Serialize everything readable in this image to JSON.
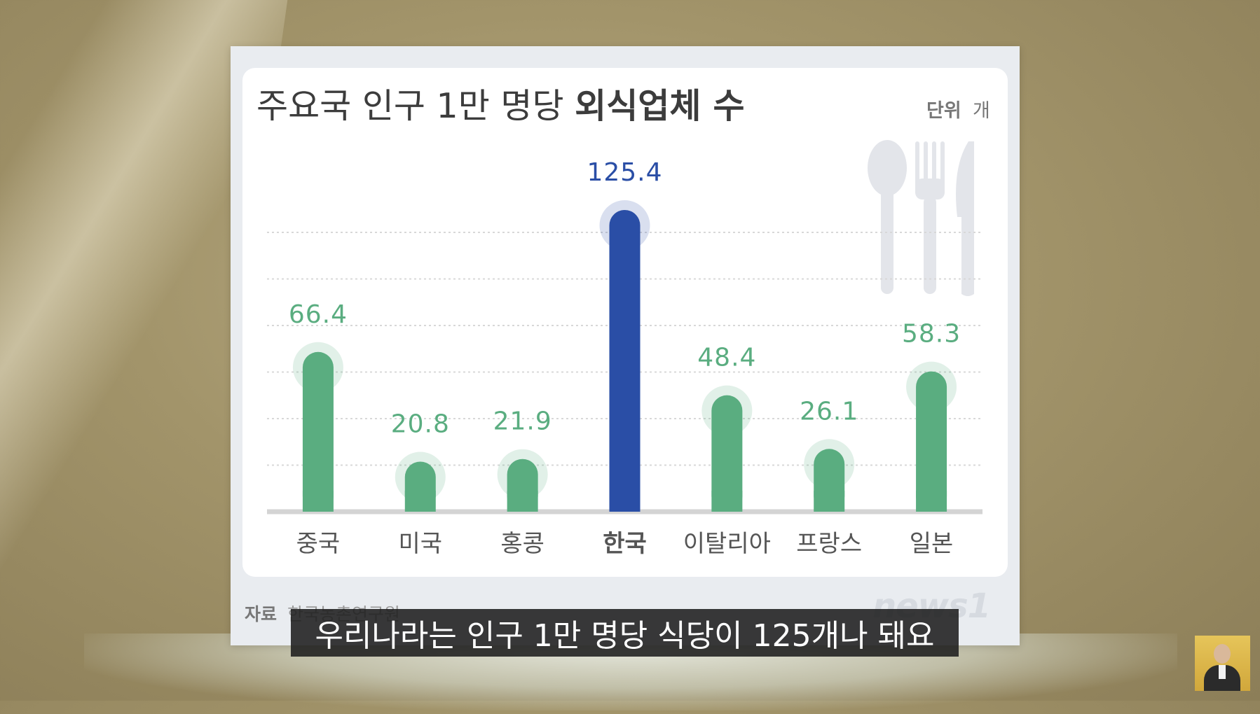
{
  "chart_data": {
    "type": "bar",
    "title_regular": "주요국 인구 1만 명당 ",
    "title_bold": "외식업체 수",
    "unit_label": "단위",
    "unit_value": "개",
    "categories": [
      "중국",
      "미국",
      "홍콩",
      "한국",
      "이탈리아",
      "프랑스",
      "일본"
    ],
    "values": [
      66.4,
      20.8,
      21.9,
      125.4,
      48.4,
      26.1,
      58.3
    ],
    "value_labels": [
      "66.4",
      "20.8",
      "21.9",
      "125.4",
      "48.4",
      "26.1",
      "58.3"
    ],
    "highlight_category": "한국",
    "ylim": [
      0,
      130
    ],
    "grid": true,
    "colors": {
      "default_bar": "#5aad80",
      "highlight_bar": "#2a4ea6",
      "default_label": "#5aad80",
      "highlight_label": "#2a4ea6",
      "category_text": "#555555",
      "grid": "#d8d8d8"
    }
  },
  "source_label": "자료",
  "source_value": "한국농촌연구원",
  "logo_text": "news1",
  "caption": "우리나라는 인구 1만 명당 식당이 125개나 돼요",
  "icons": [
    "spoon-icon",
    "fork-icon",
    "knife-icon",
    "presenter-avatar"
  ]
}
